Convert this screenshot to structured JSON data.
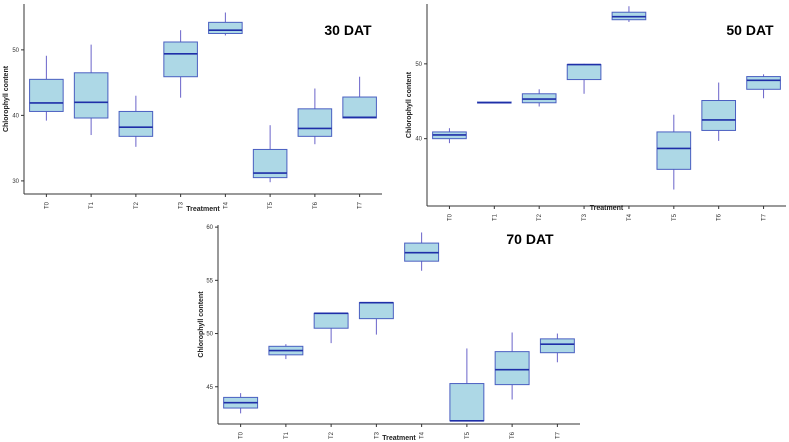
{
  "chart_data": [
    {
      "type": "boxplot",
      "title": "30 DAT",
      "xlabel": "Treatment",
      "ylabel": "Chlorophyll content",
      "categories": [
        "T0",
        "T1",
        "T2",
        "T3",
        "T4",
        "T5",
        "T6",
        "T7"
      ],
      "yticks": [
        "30",
        "40",
        "50"
      ],
      "ylim": [
        28,
        57
      ],
      "boxes": [
        {
          "category": "T0",
          "min": 39.2,
          "q1": 40.6,
          "median": 41.9,
          "q3": 45.5,
          "max": 49.1
        },
        {
          "category": "T1",
          "min": 37.0,
          "q1": 39.6,
          "median": 42.0,
          "q3": 46.5,
          "max": 50.8
        },
        {
          "category": "T2",
          "min": 35.2,
          "q1": 36.8,
          "median": 38.2,
          "q3": 40.6,
          "max": 43.0
        },
        {
          "category": "T3",
          "min": 42.7,
          "q1": 45.9,
          "median": 49.4,
          "q3": 51.2,
          "max": 53.0
        },
        {
          "category": "T4",
          "min": 52.2,
          "q1": 52.5,
          "median": 53.0,
          "q3": 54.2,
          "max": 55.7
        },
        {
          "category": "T5",
          "min": 29.8,
          "q1": 30.5,
          "median": 31.2,
          "q3": 34.8,
          "max": 38.5
        },
        {
          "category": "T6",
          "min": 35.6,
          "q1": 36.8,
          "median": 38.0,
          "q3": 41.0,
          "max": 44.1
        },
        {
          "category": "T7",
          "min": 39.6,
          "q1": 39.6,
          "median": 39.7,
          "q3": 42.8,
          "max": 45.9
        }
      ]
    },
    {
      "type": "boxplot",
      "title": "50 DAT",
      "xlabel": "Treatment",
      "ylabel": "Chlorophyll content",
      "categories": [
        "T0",
        "T1",
        "T2",
        "T3",
        "T4",
        "T5",
        "T6",
        "T7"
      ],
      "yticks": [
        "40",
        "50"
      ],
      "ylim": [
        31,
        58
      ],
      "boxes": [
        {
          "category": "T0",
          "min": 39.4,
          "q1": 40.0,
          "median": 40.5,
          "q3": 40.9,
          "max": 41.4
        },
        {
          "category": "T1",
          "min": 44.7,
          "q1": 44.8,
          "median": 44.8,
          "q3": 44.9,
          "max": 44.9
        },
        {
          "category": "T2",
          "min": 44.3,
          "q1": 44.8,
          "median": 45.3,
          "q3": 46.0,
          "max": 46.6
        },
        {
          "category": "T3",
          "min": 46.0,
          "q1": 47.9,
          "median": 49.9,
          "q3": 49.9,
          "max": 50.0
        },
        {
          "category": "T4",
          "min": 55.6,
          "q1": 55.9,
          "median": 56.3,
          "q3": 56.9,
          "max": 57.7
        },
        {
          "category": "T5",
          "min": 33.2,
          "q1": 35.9,
          "median": 38.7,
          "q3": 40.9,
          "max": 43.2
        },
        {
          "category": "T6",
          "min": 39.7,
          "q1": 41.1,
          "median": 42.5,
          "q3": 45.1,
          "max": 47.5
        },
        {
          "category": "T7",
          "min": 45.4,
          "q1": 46.6,
          "median": 47.8,
          "q3": 48.3,
          "max": 48.6
        }
      ]
    },
    {
      "type": "boxplot",
      "title": "70 DAT",
      "xlabel": "Treatment",
      "ylabel": "Chlorophyll content",
      "categories": [
        "T0",
        "T1",
        "T2",
        "T3",
        "T4",
        "T5",
        "T6",
        "T7"
      ],
      "yticks": [
        "45",
        "50",
        "55",
        "60"
      ],
      "ylim": [
        41.5,
        60.2
      ],
      "boxes": [
        {
          "category": "T0",
          "min": 42.5,
          "q1": 43.0,
          "median": 43.5,
          "q3": 44.0,
          "max": 44.4
        },
        {
          "category": "T1",
          "min": 47.6,
          "q1": 48.0,
          "median": 48.4,
          "q3": 48.8,
          "max": 49.0
        },
        {
          "category": "T2",
          "min": 49.1,
          "q1": 50.5,
          "median": 51.9,
          "q3": 51.9,
          "max": 51.9
        },
        {
          "category": "T3",
          "min": 49.9,
          "q1": 51.4,
          "median": 52.9,
          "q3": 52.9,
          "max": 52.9
        },
        {
          "category": "T4",
          "min": 55.9,
          "q1": 56.8,
          "median": 57.6,
          "q3": 58.5,
          "max": 59.5
        },
        {
          "category": "T5",
          "min": 41.8,
          "q1": 41.8,
          "median": 41.8,
          "q3": 45.3,
          "max": 48.6
        },
        {
          "category": "T6",
          "min": 43.8,
          "q1": 45.2,
          "median": 46.6,
          "q3": 48.3,
          "max": 50.1
        },
        {
          "category": "T7",
          "min": 47.3,
          "q1": 48.2,
          "median": 49.0,
          "q3": 49.5,
          "max": 50.0
        }
      ]
    }
  ]
}
